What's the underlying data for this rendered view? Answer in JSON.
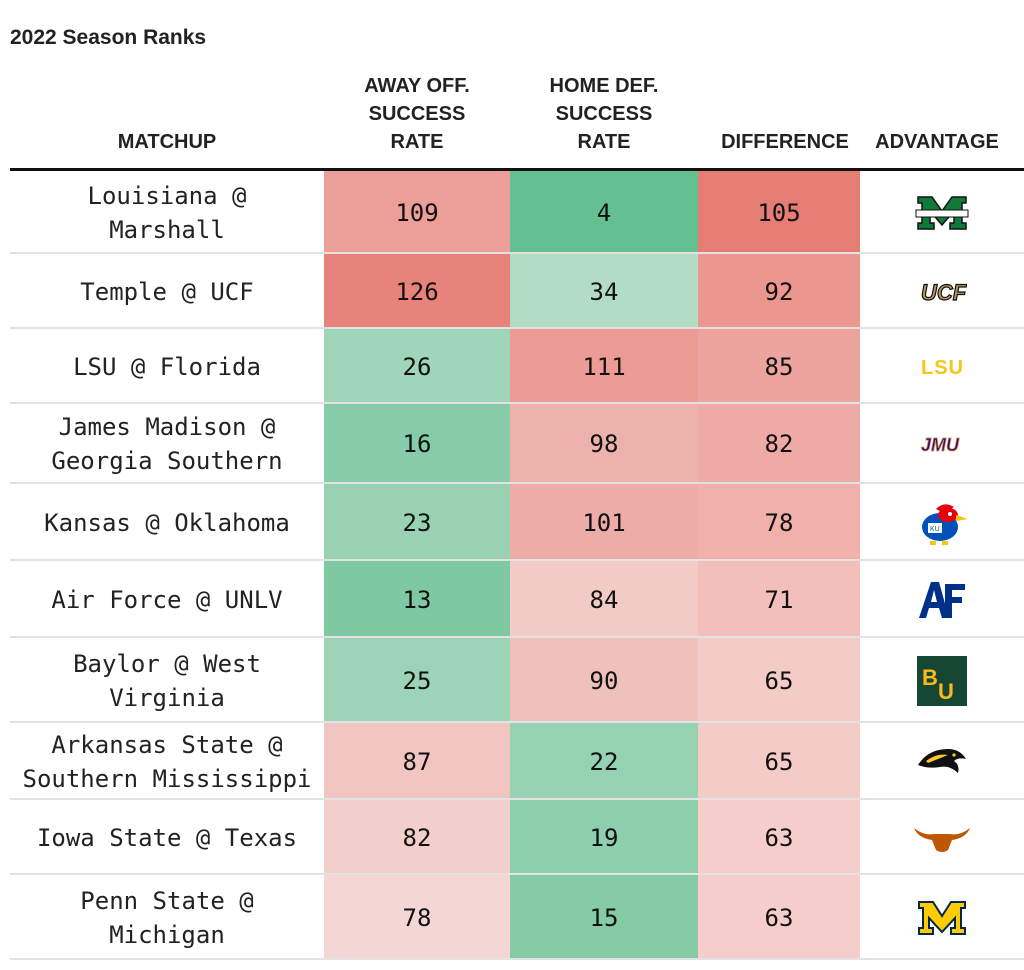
{
  "title": "2022 Season Ranks",
  "headers": {
    "matchup": "MATCHUP",
    "away_off": [
      "AWAY OFF.",
      "SUCCESS",
      "RATE"
    ],
    "home_def": [
      "HOME DEF.",
      "SUCCESS",
      "RATE"
    ],
    "difference": "DIFFERENCE",
    "advantage": "ADVANTAGE"
  },
  "rows": [
    {
      "matchup": [
        "Louisiana @",
        "Marshall"
      ],
      "away_off": "109",
      "home_def": "4",
      "difference": "105",
      "advantage_icon": "marshall-logo-icon"
    },
    {
      "matchup": [
        "Temple @ UCF"
      ],
      "away_off": "126",
      "home_def": "34",
      "difference": "92",
      "advantage_icon": "ucf-logo-icon"
    },
    {
      "matchup": [
        "LSU @ Florida"
      ],
      "away_off": "26",
      "home_def": "111",
      "difference": "85",
      "advantage_icon": "lsu-logo-icon"
    },
    {
      "matchup": [
        "James Madison @",
        "Georgia Southern"
      ],
      "away_off": "16",
      "home_def": "98",
      "difference": "82",
      "advantage_icon": "jmu-logo-icon"
    },
    {
      "matchup": [
        "Kansas @ Oklahoma"
      ],
      "away_off": "23",
      "home_def": "101",
      "difference": "78",
      "advantage_icon": "kansas-jayhawk-logo-icon"
    },
    {
      "matchup": [
        "Air Force @ UNLV"
      ],
      "away_off": "13",
      "home_def": "84",
      "difference": "71",
      "advantage_icon": "air-force-logo-icon"
    },
    {
      "matchup": [
        "Baylor @ West",
        "Virginia"
      ],
      "away_off": "25",
      "home_def": "90",
      "difference": "65",
      "advantage_icon": "baylor-logo-icon"
    },
    {
      "matchup": [
        "Arkansas State @",
        "Southern Mississippi"
      ],
      "away_off": "87",
      "home_def": "22",
      "difference": "65",
      "advantage_icon": "southern-miss-eagle-logo-icon"
    },
    {
      "matchup": [
        "Iowa State @ Texas"
      ],
      "away_off": "82",
      "home_def": "19",
      "difference": "63",
      "advantage_icon": "texas-longhorn-logo-icon"
    },
    {
      "matchup": [
        "Penn State @",
        "Michigan"
      ],
      "away_off": "78",
      "home_def": "15",
      "difference": "63",
      "advantage_icon": "michigan-logo-icon"
    }
  ],
  "colors": {
    "red_strong": "#e67d74",
    "green_strong": "#58bc89",
    "neutral": "#f7f7f7"
  }
}
